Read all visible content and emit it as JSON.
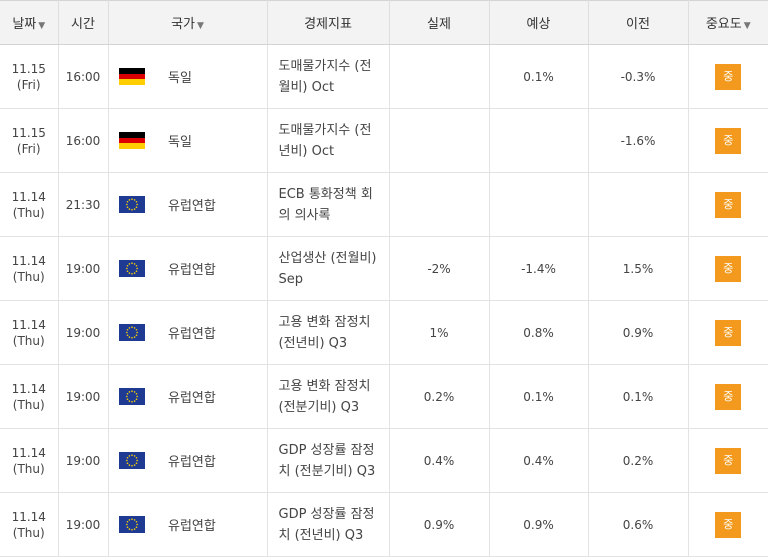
{
  "header": {
    "date": "날짜",
    "time": "시간",
    "country": "국가",
    "indicator": "경제지표",
    "actual": "실제",
    "forecast": "예상",
    "previous": "이전",
    "importance": "중요도"
  },
  "rows": [
    {
      "date": "11.15",
      "day": "(Fri)",
      "time": "16:00",
      "flag": "germany-flag-icon",
      "country": "독일",
      "indicator": "도매물가지수 (전월비) Oct",
      "actual": "",
      "forecast": "0.1%",
      "previous": "-0.3%",
      "importance": "중"
    },
    {
      "date": "11.15",
      "day": "(Fri)",
      "time": "16:00",
      "flag": "germany-flag-icon",
      "country": "독일",
      "indicator": "도매물가지수 (전년비) Oct",
      "actual": "",
      "forecast": "",
      "previous": "-1.6%",
      "importance": "중"
    },
    {
      "date": "11.14",
      "day": "(Thu)",
      "time": "21:30",
      "flag": "eu-flag-icon",
      "country": "유럽연합",
      "indicator": "ECB 통화정책 회의 의사록",
      "actual": "",
      "forecast": "",
      "previous": "",
      "importance": "중"
    },
    {
      "date": "11.14",
      "day": "(Thu)",
      "time": "19:00",
      "flag": "eu-flag-icon",
      "country": "유럽연합",
      "indicator": "산업생산 (전월비) Sep",
      "actual": "-2%",
      "forecast": "-1.4%",
      "previous": "1.5%",
      "importance": "중"
    },
    {
      "date": "11.14",
      "day": "(Thu)",
      "time": "19:00",
      "flag": "eu-flag-icon",
      "country": "유럽연합",
      "indicator": "고용 변화 잠정치 (전년비) Q3",
      "actual": "1%",
      "forecast": "0.8%",
      "previous": "0.9%",
      "importance": "중"
    },
    {
      "date": "11.14",
      "day": "(Thu)",
      "time": "19:00",
      "flag": "eu-flag-icon",
      "country": "유럽연합",
      "indicator": "고용 변화 잠정치 (전분기비) Q3",
      "actual": "0.2%",
      "forecast": "0.1%",
      "previous": "0.1%",
      "importance": "중"
    },
    {
      "date": "11.14",
      "day": "(Thu)",
      "time": "19:00",
      "flag": "eu-flag-icon",
      "country": "유럽연합",
      "indicator": "GDP 성장률 잠정치 (전분기비) Q3",
      "actual": "0.4%",
      "forecast": "0.4%",
      "previous": "0.2%",
      "importance": "중"
    },
    {
      "date": "11.14",
      "day": "(Thu)",
      "time": "19:00",
      "flag": "eu-flag-icon",
      "country": "유럽연합",
      "indicator": "GDP 성장률 잠정치 (전년비) Q3",
      "actual": "0.9%",
      "forecast": "0.9%",
      "previous": "0.6%",
      "importance": "중"
    }
  ]
}
